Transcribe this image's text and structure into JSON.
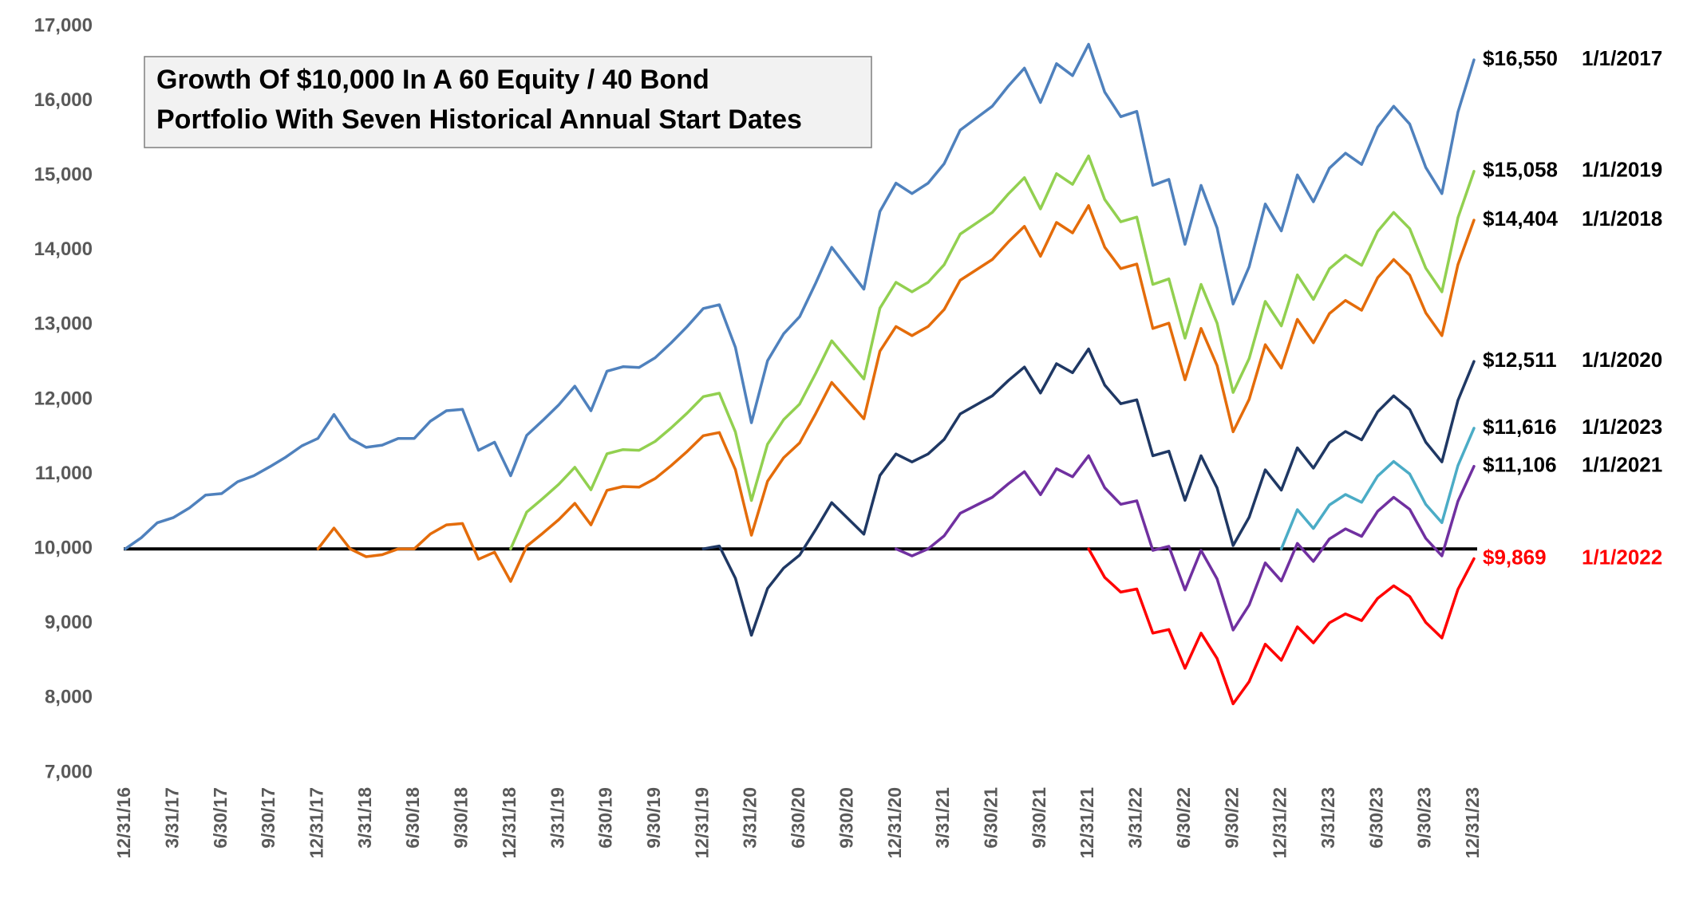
{
  "chart_data": {
    "type": "line",
    "title_lines": [
      "Growth Of $10,000 In A 60 Equity / 40 Bond",
      "Portfolio With Seven Historical Annual Start Dates"
    ],
    "categories": [
      "12/31/16",
      null,
      null,
      "3/31/17",
      null,
      null,
      "6/30/17",
      null,
      null,
      "9/30/17",
      null,
      null,
      "12/31/17",
      null,
      null,
      "3/31/18",
      null,
      null,
      "6/30/18",
      null,
      null,
      "9/30/18",
      null,
      null,
      "12/31/18",
      null,
      null,
      "3/31/19",
      null,
      null,
      "6/30/19",
      null,
      null,
      "9/30/19",
      null,
      null,
      "12/31/19",
      null,
      null,
      "3/31/20",
      null,
      null,
      "6/30/20",
      null,
      null,
      "9/30/20",
      null,
      null,
      "12/31/20",
      null,
      null,
      "3/31/21",
      null,
      null,
      "6/30/21",
      null,
      null,
      "9/30/21",
      null,
      null,
      "12/31/21",
      null,
      null,
      "3/31/22",
      null,
      null,
      "6/30/22",
      null,
      null,
      "9/30/22",
      null,
      null,
      "12/31/22",
      null,
      null,
      "3/31/23",
      null,
      null,
      "6/30/23",
      null,
      null,
      "9/30/23",
      null,
      null,
      "12/31/23"
    ],
    "ylim": [
      7000,
      17000
    ],
    "yticks": [
      {
        "value": 7000,
        "label": "7,000"
      },
      {
        "value": 8000,
        "label": "8,000"
      },
      {
        "value": 9000,
        "label": "9,000"
      },
      {
        "value": 10000,
        "label": "10,000"
      },
      {
        "value": 11000,
        "label": "11,000"
      },
      {
        "value": 12000,
        "label": "12,000"
      },
      {
        "value": 13000,
        "label": "13,000"
      },
      {
        "value": 14000,
        "label": "14,000"
      },
      {
        "value": 15000,
        "label": "15,000"
      },
      {
        "value": 16000,
        "label": "16,000"
      },
      {
        "value": 17000,
        "label": "17,000"
      }
    ],
    "grid": false,
    "reference_line": {
      "value": 10000,
      "color": "#000000"
    },
    "series": [
      {
        "name": "1/1/2017",
        "color": "#4f81bd",
        "label_color": "#000000",
        "last_label": "$16,550",
        "values": [
          10000,
          10150,
          10350,
          10420,
          10550,
          10720,
          10740,
          10900,
          10980,
          11100,
          11230,
          11380,
          11480,
          11800,
          11480,
          11360,
          11390,
          11480,
          11480,
          11710,
          11850,
          11870,
          11320,
          11430,
          10980,
          11520,
          11720,
          11930,
          12180,
          11850,
          12380,
          12440,
          12430,
          12560,
          12760,
          12980,
          13220,
          13270,
          12700,
          11690,
          12520,
          12880,
          13110,
          13560,
          14040,
          13760,
          13480,
          14520,
          14900,
          14760,
          14900,
          15160,
          15610,
          15770,
          15930,
          16200,
          16440,
          15980,
          16500,
          16340,
          16760,
          16120,
          15790,
          15860,
          14870,
          14950,
          14080,
          14870,
          14300,
          13280,
          13780,
          14620,
          14260,
          15010,
          14650,
          15100,
          15300,
          15150,
          15650,
          15930,
          15690,
          15110,
          14760,
          15850,
          16550
        ]
      },
      {
        "name": "1/1/2018",
        "color": "#e46c0a",
        "label_color": "#000000",
        "last_label": "$14,404",
        "values": [
          null,
          null,
          null,
          null,
          null,
          null,
          null,
          null,
          null,
          null,
          null,
          null,
          10000,
          10279,
          10000,
          9895,
          9922,
          10000,
          10000,
          10200,
          10322,
          10340,
          9861,
          9956,
          9564,
          10035,
          10209,
          10392,
          10610,
          10322,
          10784,
          10836,
          10827,
          10941,
          11115,
          11307,
          11516,
          11559,
          11063,
          10183,
          10906,
          11220,
          11420,
          11812,
          12230,
          11986,
          11742,
          12648,
          12979,
          12857,
          12979,
          13206,
          13598,
          13737,
          13876,
          14111,
          14321,
          13920,
          14373,
          14233,
          14599,
          14042,
          13754,
          13815,
          12953,
          13023,
          12265,
          12953,
          12456,
          11568,
          12003,
          12735,
          12422,
          13075,
          12761,
          13153,
          13328,
          13197,
          13632,
          13876,
          13667,
          13162,
          12857,
          13807,
          14404
        ]
      },
      {
        "name": "1/1/2019",
        "color": "#92d050",
        "label_color": "#000000",
        "last_label": "$15,058",
        "values": [
          null,
          null,
          null,
          null,
          null,
          null,
          null,
          null,
          null,
          null,
          null,
          null,
          null,
          null,
          null,
          null,
          null,
          null,
          null,
          null,
          null,
          null,
          null,
          null,
          10000,
          10492,
          10674,
          10865,
          11093,
          10792,
          11275,
          11330,
          11321,
          11439,
          11621,
          11821,
          12040,
          12086,
          11566,
          10647,
          11403,
          11730,
          11940,
          12350,
          12787,
          12532,
          12277,
          13224,
          13570,
          13443,
          13570,
          13807,
          14217,
          14362,
          14508,
          14754,
          14973,
          14554,
          15027,
          14882,
          15264,
          14681,
          14381,
          14444,
          13543,
          13616,
          12823,
          13543,
          13024,
          12095,
          12550,
          13315,
          12987,
          13670,
          13342,
          13752,
          13934,
          13798,
          14253,
          14508,
          14290,
          13761,
          13443,
          14435,
          15058
        ]
      },
      {
        "name": "1/1/2020",
        "color": "#1f3864",
        "label_color": "#000000",
        "last_label": "$12,511",
        "values": [
          null,
          null,
          null,
          null,
          null,
          null,
          null,
          null,
          null,
          null,
          null,
          null,
          null,
          null,
          null,
          null,
          null,
          null,
          null,
          null,
          null,
          null,
          null,
          null,
          null,
          null,
          null,
          null,
          null,
          null,
          null,
          null,
          null,
          null,
          null,
          null,
          10000,
          10038,
          9607,
          8843,
          9470,
          9743,
          9917,
          10257,
          10620,
          10408,
          10197,
          10983,
          11271,
          11165,
          11271,
          11467,
          11808,
          11929,
          12050,
          12254,
          12436,
          12088,
          12481,
          12360,
          12678,
          12194,
          11944,
          11997,
          11248,
          11309,
          10651,
          11248,
          10817,
          10045,
          10424,
          11059,
          10787,
          11354,
          11082,
          11422,
          11573,
          11460,
          11838,
          12050,
          11868,
          11430,
          11165,
          11989,
          12511
        ]
      },
      {
        "name": "1/1/2023",
        "color": "#4bacc6",
        "label_color": "#000000",
        "last_label": "$11,616",
        "values": [
          null,
          null,
          null,
          null,
          null,
          null,
          null,
          null,
          null,
          null,
          null,
          null,
          null,
          null,
          null,
          null,
          null,
          null,
          null,
          null,
          null,
          null,
          null,
          null,
          null,
          null,
          null,
          null,
          null,
          null,
          null,
          null,
          null,
          null,
          null,
          null,
          null,
          null,
          null,
          null,
          null,
          null,
          null,
          null,
          null,
          null,
          null,
          null,
          null,
          null,
          null,
          null,
          null,
          null,
          null,
          null,
          null,
          null,
          null,
          null,
          null,
          null,
          null,
          null,
          null,
          null,
          null,
          null,
          null,
          null,
          null,
          null,
          10000,
          10526,
          10273,
          10589,
          10729,
          10624,
          10975,
          11171,
          11003,
          10596,
          10351,
          11115,
          11616
        ]
      },
      {
        "name": "1/1/2021",
        "color": "#7030a0",
        "label_color": "#000000",
        "last_label": "$11,106",
        "values": [
          null,
          null,
          null,
          null,
          null,
          null,
          null,
          null,
          null,
          null,
          null,
          null,
          null,
          null,
          null,
          null,
          null,
          null,
          null,
          null,
          null,
          null,
          null,
          null,
          null,
          null,
          null,
          null,
          null,
          null,
          null,
          null,
          null,
          null,
          null,
          null,
          null,
          null,
          null,
          null,
          null,
          null,
          null,
          null,
          null,
          null,
          null,
          null,
          10000,
          9906,
          10000,
          10174,
          10477,
          10584,
          10691,
          10872,
          11034,
          10725,
          11074,
          10966,
          11248,
          10819,
          10597,
          10644,
          9980,
          10034,
          9450,
          9980,
          9597,
          8913,
          9248,
          9812,
          9570,
          10074,
          9832,
          10134,
          10268,
          10168,
          10503,
          10691,
          10530,
          10141,
          9906,
          10638,
          11106
        ]
      },
      {
        "name": "1/1/2022",
        "color": "#ff0000",
        "label_color": "#ff0000",
        "last_label": "$9,869",
        "values": [
          null,
          null,
          null,
          null,
          null,
          null,
          null,
          null,
          null,
          null,
          null,
          null,
          null,
          null,
          null,
          null,
          null,
          null,
          null,
          null,
          null,
          null,
          null,
          null,
          null,
          null,
          null,
          null,
          null,
          null,
          null,
          null,
          null,
          null,
          null,
          null,
          null,
          null,
          null,
          null,
          null,
          null,
          null,
          null,
          null,
          null,
          null,
          null,
          null,
          null,
          null,
          null,
          null,
          null,
          null,
          null,
          null,
          null,
          null,
          null,
          10000,
          9618,
          9421,
          9463,
          8872,
          8920,
          8401,
          8872,
          8532,
          7924,
          8222,
          8723,
          8508,
          8956,
          8741,
          9010,
          9129,
          9039,
          9338,
          9505,
          9362,
          9015,
          8807,
          9457,
          9869
        ]
      }
    ]
  }
}
